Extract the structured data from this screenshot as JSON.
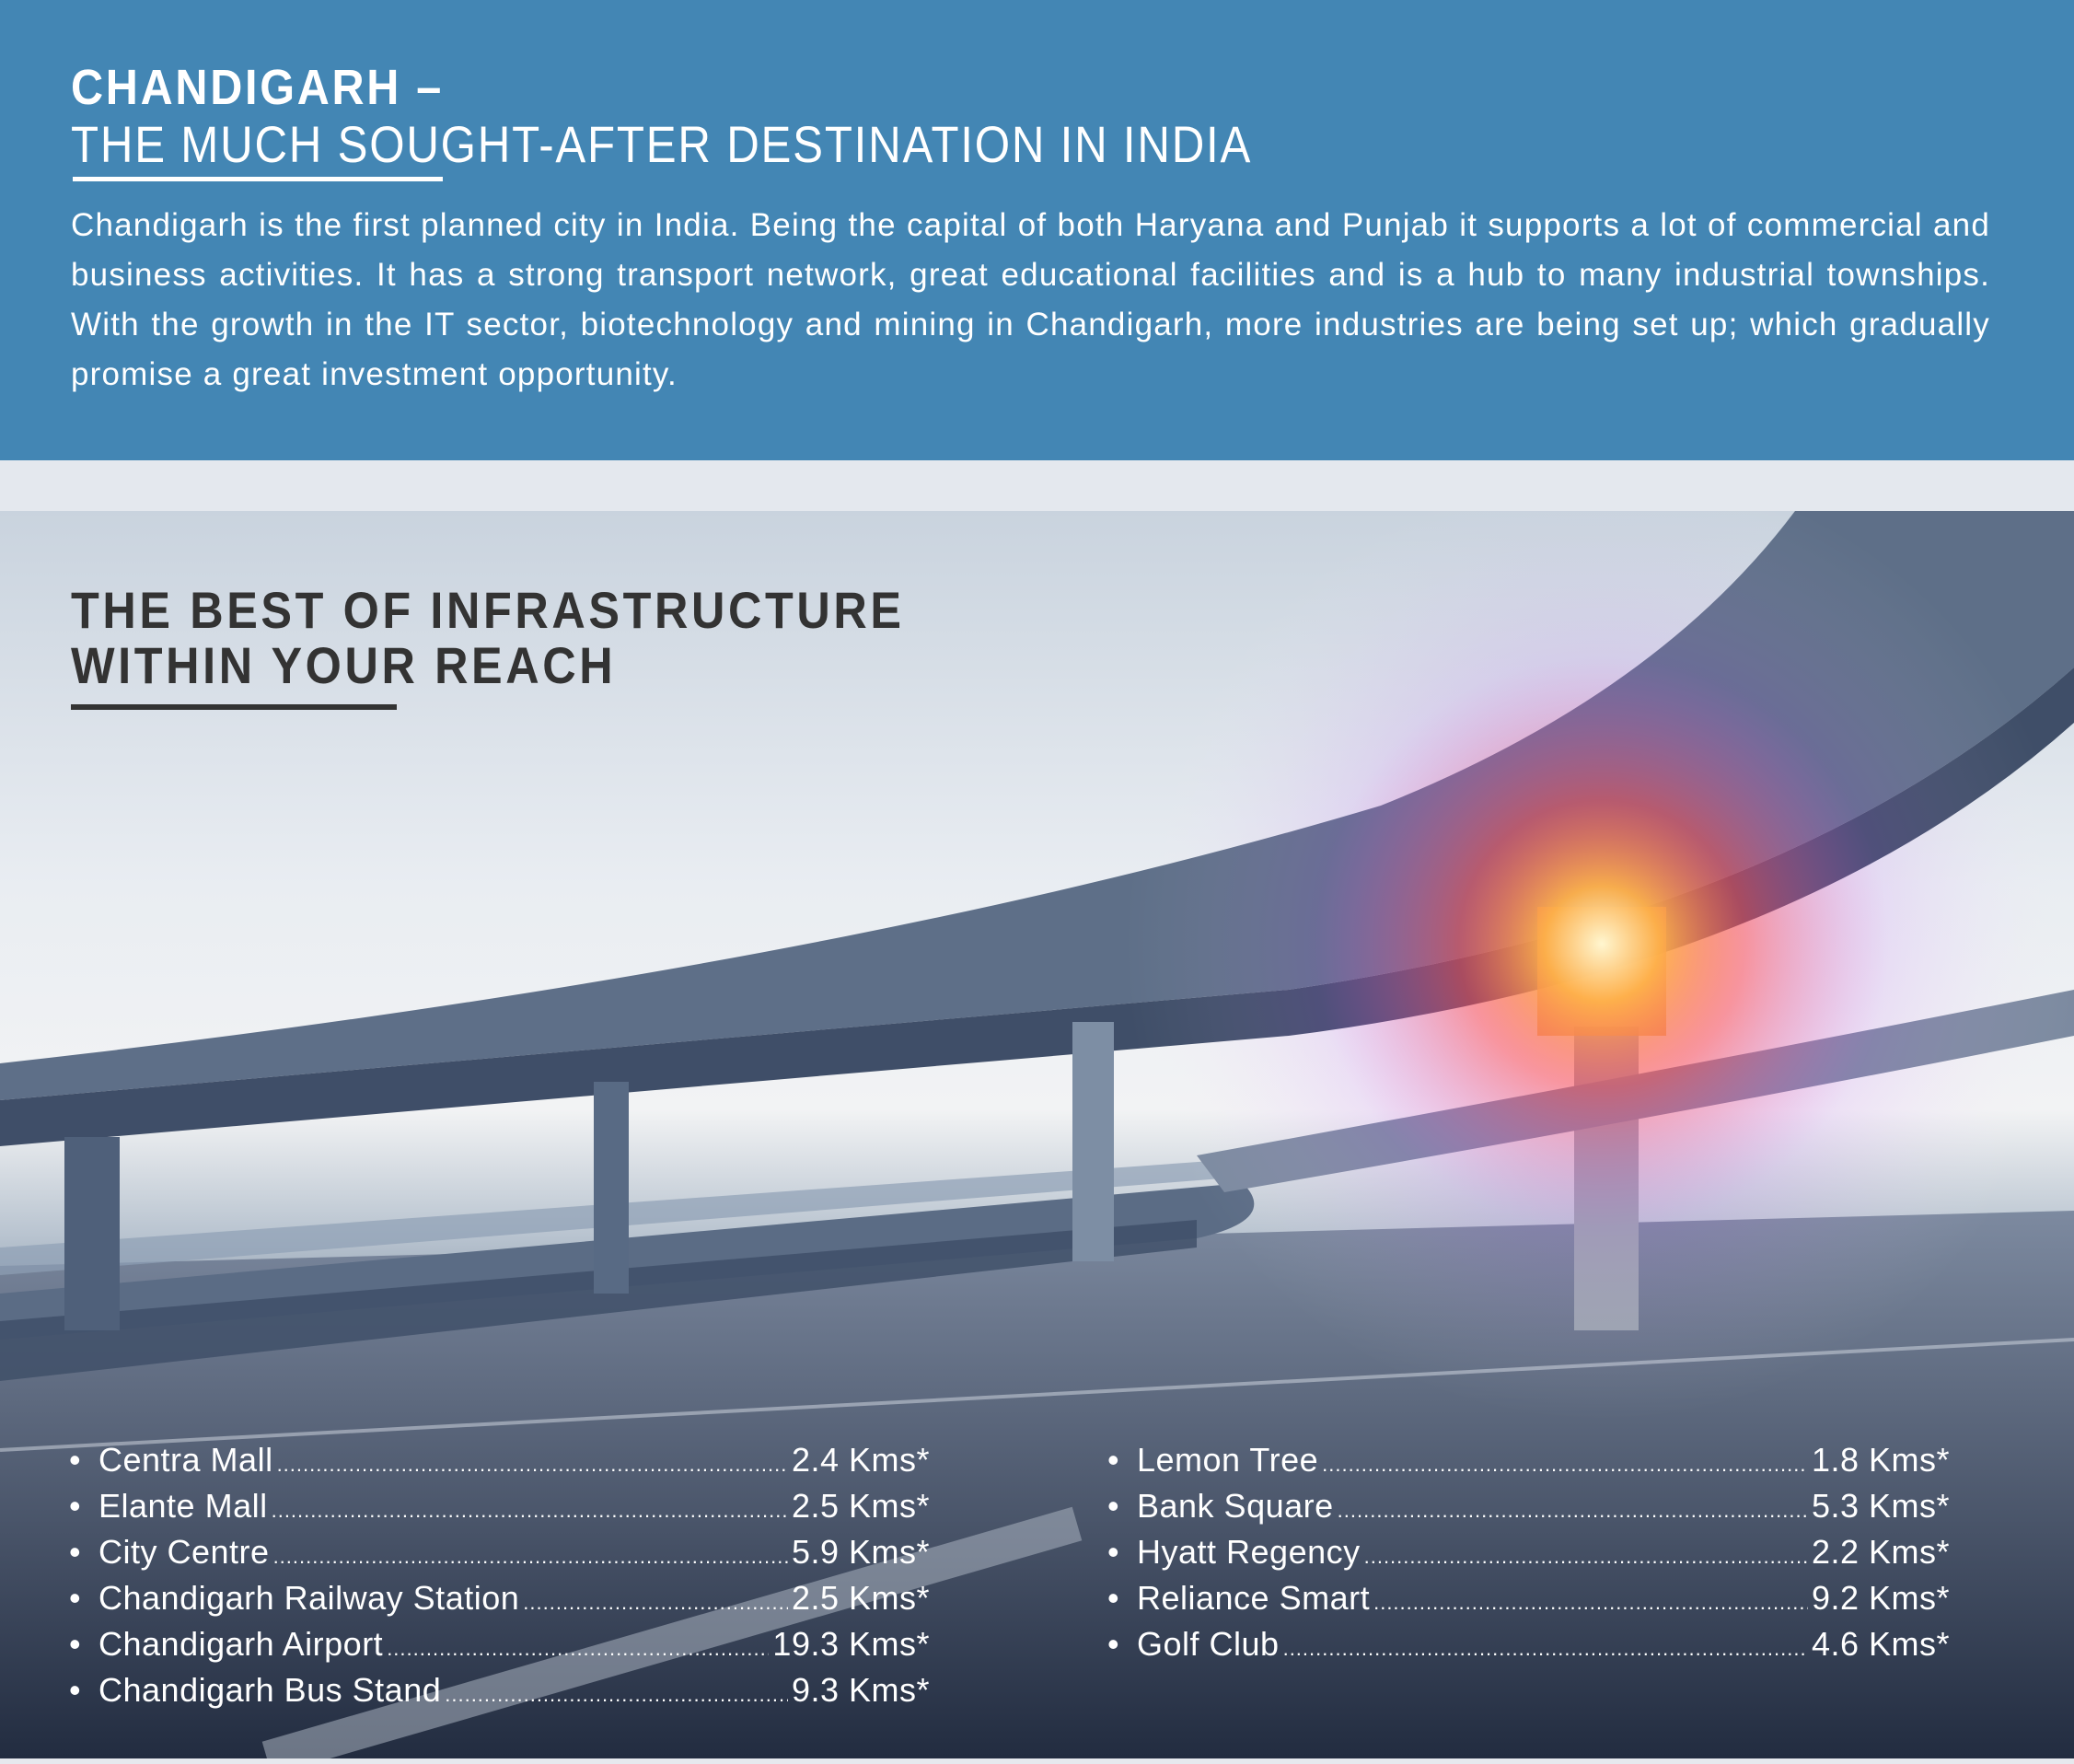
{
  "header": {
    "title": "CHANDIGARH –",
    "subtitle": "THE MUCH SOUGHT-AFTER DESTINATION IN INDIA",
    "paragraph": "Chandigarh is the first planned city in India. Being the capital of both Haryana and Punjab it supports a lot of commercial and business activities. It has a strong transport network, great educational facilities and is a hub to many industrial townships. With the growth in the IT sector, biotechnology and mining in Chandigarh, more industries are being set up; which gradually promise a great investment opportunity."
  },
  "infrastructure": {
    "line1": "THE BEST OF INFRASTRUCTURE",
    "line2": "WITHIN YOUR REACH",
    "left": [
      {
        "name": "Centra Mall",
        "distance": "2.4 Kms*"
      },
      {
        "name": "Elante Mall",
        "distance": "2.5 Kms*"
      },
      {
        "name": "City Centre",
        "distance": "5.9 Kms*"
      },
      {
        "name": "Chandigarh Railway Station",
        "distance": "2.5 Kms*"
      },
      {
        "name": "Chandigarh Airport",
        "distance": "19.3 Kms*"
      },
      {
        "name": "Chandigarh Bus Stand",
        "distance": "9.3 Kms*"
      }
    ],
    "right": [
      {
        "name": "Lemon Tree",
        "distance": "1.8 Kms*"
      },
      {
        "name": "Bank Square",
        "distance": "5.3 Kms*"
      },
      {
        "name": "Hyatt Regency",
        "distance": "2.2 Kms*"
      },
      {
        "name": "Reliance Smart",
        "distance": "9.2 Kms*"
      },
      {
        "name": "Golf Club",
        "distance": "4.6 Kms*"
      }
    ]
  },
  "colors": {
    "header_bg": "#4386b4",
    "heading_dark": "#333333"
  }
}
